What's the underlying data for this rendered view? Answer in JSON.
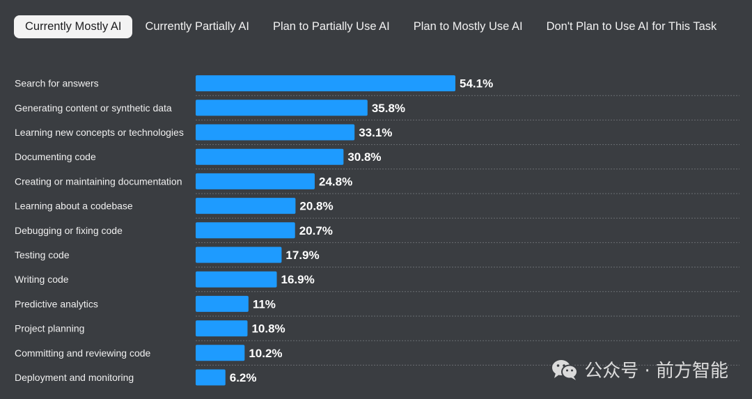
{
  "tabs": [
    {
      "label": "Currently Mostly AI",
      "active": true
    },
    {
      "label": "Currently Partially AI",
      "active": false
    },
    {
      "label": "Plan to Partially Use AI",
      "active": false
    },
    {
      "label": "Plan to Mostly Use AI",
      "active": false
    },
    {
      "label": "Don't Plan to Use AI for This Task",
      "active": false
    }
  ],
  "watermark": {
    "text": "公众号 · 前方智能",
    "icon": "wechat-icon"
  },
  "colors": {
    "bar": "#1e9bff",
    "background": "#3a3d41"
  },
  "chart_data": {
    "type": "bar",
    "orientation": "horizontal",
    "categories": [
      "Search for answers",
      "Generating content or synthetic data",
      "Learning new concepts or technologies",
      "Documenting code",
      "Creating or maintaining documentation",
      "Learning about a codebase",
      "Debugging or fixing code",
      "Testing code",
      "Writing code",
      "Predictive analytics",
      "Project planning",
      "Committing and reviewing code",
      "Deployment and monitoring"
    ],
    "values": [
      54.1,
      35.8,
      33.1,
      30.8,
      24.8,
      20.8,
      20.7,
      17.9,
      16.9,
      11,
      10.8,
      10.2,
      6.2
    ],
    "value_labels": [
      "54.1%",
      "35.8%",
      "33.1%",
      "30.8%",
      "24.8%",
      "20.8%",
      "20.7%",
      "17.9%",
      "16.9%",
      "11%",
      "10.8%",
      "10.2%",
      "6.2%"
    ],
    "xlim": [
      0,
      100
    ],
    "grid": false,
    "title": "",
    "xlabel": "",
    "ylabel": ""
  }
}
